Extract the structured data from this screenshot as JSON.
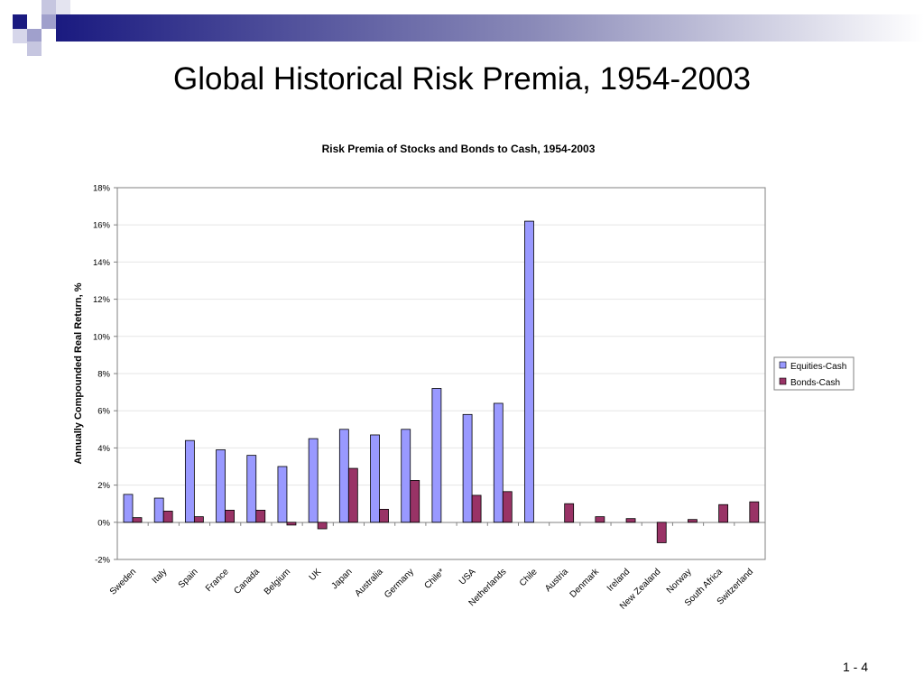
{
  "slide": {
    "title": "Global Historical Risk Premia, 1954-2003",
    "page_number": "1 - 4",
    "accent_color": "#1a1a80"
  },
  "chart_data": {
    "type": "bar",
    "title": "Risk Premia of Stocks and Bonds to Cash, 1954-2003",
    "xlabel": "",
    "ylabel": "Annually Compounded Real Return, %",
    "ylim": [
      -2,
      18
    ],
    "yticks": [
      -2,
      0,
      2,
      4,
      6,
      8,
      10,
      12,
      14,
      16,
      18
    ],
    "ytick_labels": [
      "-2%",
      "0%",
      "2%",
      "4%",
      "6%",
      "8%",
      "10%",
      "12%",
      "14%",
      "16%",
      "18%"
    ],
    "grid": true,
    "legend_position": "right",
    "categories": [
      "Sweden",
      "Italy",
      "Spain",
      "France",
      "Canada",
      "Belgium",
      "UK",
      "Japan",
      "Australia",
      "Germany",
      "Chile*",
      "USA",
      "Netherlands",
      "Chile",
      "Austria",
      "Denmark",
      "Ireland",
      "New Zealand",
      "Norway",
      "South Africa",
      "Switzerland"
    ],
    "series": [
      {
        "name": "Equities-Cash",
        "color": "#9999ff",
        "values": [
          1.5,
          1.3,
          4.4,
          3.9,
          3.6,
          3.0,
          4.5,
          5.0,
          4.7,
          5.0,
          7.2,
          5.8,
          6.4,
          16.2,
          null,
          null,
          null,
          null,
          null,
          null,
          null
        ]
      },
      {
        "name": "Bonds-Cash",
        "color": "#993366",
        "values": [
          0.25,
          0.6,
          0.3,
          0.65,
          0.65,
          -0.15,
          -0.35,
          2.9,
          0.7,
          2.25,
          null,
          1.45,
          1.65,
          null,
          1.0,
          0.3,
          0.2,
          -1.1,
          0.15,
          0.95,
          1.1
        ]
      }
    ]
  }
}
